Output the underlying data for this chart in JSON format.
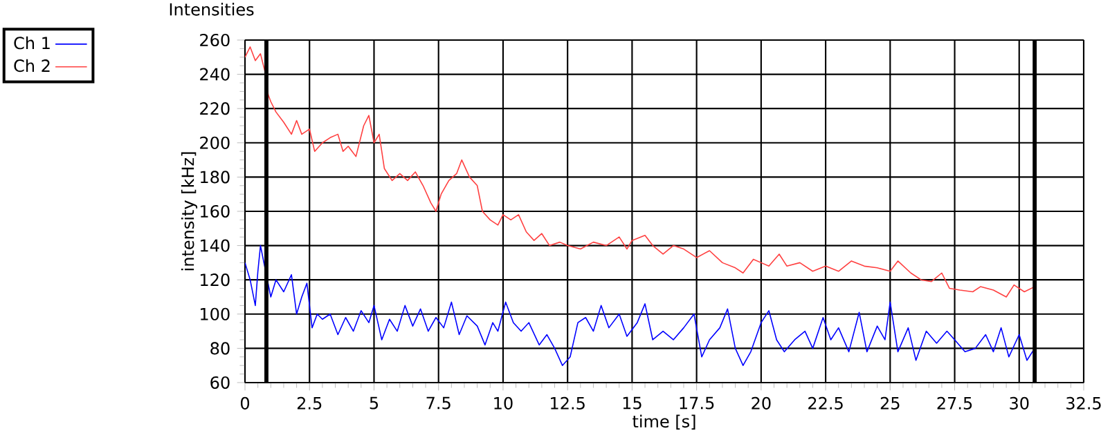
{
  "chart_data": {
    "type": "line",
    "title": "Intensities",
    "xlabel": "time [s]",
    "ylabel": "intensity [kHz]",
    "xlim": [
      0,
      32.5
    ],
    "ylim": [
      60,
      260
    ],
    "xticks": [
      0,
      2.5,
      5,
      7.5,
      10,
      12.5,
      15,
      17.5,
      20,
      22.5,
      25,
      27.5,
      30,
      32.5
    ],
    "yticks": [
      60,
      80,
      100,
      120,
      140,
      160,
      180,
      200,
      220,
      240,
      260
    ],
    "grid": true,
    "legend": "top left",
    "marker": "none",
    "line_style": "solid",
    "ref_lines": [
      {
        "axis": "x",
        "value": 0.83,
        "color": "#000000"
      },
      {
        "axis": "x",
        "value": 30.6,
        "color": "#000000"
      }
    ],
    "series": [
      {
        "name": "Ch 1",
        "color": "#0000ff",
        "x": [
          0,
          0.2,
          0.4,
          0.5,
          0.6,
          0.8,
          1.0,
          1.2,
          1.5,
          1.8,
          2.0,
          2.2,
          2.4,
          2.6,
          2.8,
          3.0,
          3.3,
          3.6,
          3.9,
          4.2,
          4.5,
          4.8,
          5.0,
          5.3,
          5.6,
          5.9,
          6.2,
          6.5,
          6.8,
          7.1,
          7.4,
          7.7,
          8.0,
          8.3,
          8.6,
          9.0,
          9.3,
          9.6,
          9.8,
          10.1,
          10.4,
          10.7,
          11.0,
          11.4,
          11.7,
          12.0,
          12.3,
          12.6,
          12.9,
          13.2,
          13.5,
          13.8,
          14.1,
          14.5,
          14.8,
          15.2,
          15.5,
          15.8,
          16.2,
          16.6,
          17.0,
          17.4,
          17.7,
          18.0,
          18.4,
          18.7,
          19.0,
          19.3,
          19.6,
          20.0,
          20.3,
          20.6,
          20.9,
          21.3,
          21.7,
          22.0,
          22.4,
          22.7,
          23.0,
          23.4,
          23.8,
          24.1,
          24.5,
          24.8,
          25.0,
          25.3,
          25.7,
          26.0,
          26.4,
          26.8,
          27.2,
          27.5,
          27.9,
          28.3,
          28.7,
          29.0,
          29.3,
          29.6,
          30.0,
          30.3,
          30.6
        ],
        "values": [
          130,
          120,
          105,
          125,
          140,
          null,
          110,
          120,
          113,
          123,
          100,
          110,
          118,
          92,
          100,
          97,
          100,
          88,
          98,
          90,
          102,
          95,
          105,
          85,
          97,
          90,
          105,
          93,
          103,
          90,
          98,
          92,
          107,
          88,
          99,
          93,
          82,
          95,
          90,
          107,
          95,
          90,
          95,
          82,
          88,
          80,
          70,
          75,
          95,
          98,
          90,
          105,
          92,
          100,
          87,
          95,
          106,
          85,
          90,
          85,
          92,
          100,
          75,
          85,
          92,
          103,
          80,
          70,
          78,
          95,
          102,
          85,
          78,
          85,
          90,
          80,
          98,
          85,
          92,
          78,
          101,
          78,
          93,
          85,
          107,
          78,
          92,
          73,
          90,
          83,
          90,
          85,
          78,
          80,
          88,
          78,
          92,
          75,
          88,
          73,
          80
        ]
      },
      {
        "name": "Ch 2",
        "color": "#ff4040",
        "x": [
          0,
          0.2,
          0.4,
          0.6,
          0.8,
          0.9,
          1.0,
          1.2,
          1.5,
          1.8,
          2.0,
          2.2,
          2.5,
          2.7,
          3.0,
          3.3,
          3.6,
          3.8,
          4.0,
          4.3,
          4.6,
          4.8,
          5.0,
          5.2,
          5.4,
          5.7,
          6.0,
          6.3,
          6.6,
          6.9,
          7.2,
          7.4,
          7.6,
          7.9,
          8.2,
          8.4,
          8.7,
          9.0,
          9.2,
          9.5,
          9.8,
          10.0,
          10.3,
          10.6,
          10.9,
          11.2,
          11.5,
          11.8,
          12.2,
          12.5,
          13.0,
          13.5,
          14.0,
          14.5,
          14.8,
          15.0,
          15.5,
          15.8,
          16.2,
          16.6,
          17.0,
          17.5,
          18.0,
          18.5,
          19.0,
          19.3,
          19.7,
          20.0,
          20.3,
          20.7,
          21.0,
          21.5,
          22.0,
          22.5,
          23.0,
          23.5,
          24.0,
          24.5,
          25.0,
          25.3,
          25.8,
          26.2,
          26.6,
          27.0,
          27.3,
          27.7,
          28.2,
          28.5,
          29.0,
          29.5,
          29.8,
          30.2,
          30.6
        ],
        "values": [
          250,
          256,
          248,
          252,
          240,
          228,
          224,
          218,
          212,
          205,
          213,
          205,
          208,
          195,
          200,
          203,
          205,
          195,
          198,
          192,
          210,
          216,
          200,
          205,
          185,
          178,
          182,
          178,
          183,
          175,
          165,
          160,
          170,
          178,
          182,
          190,
          180,
          175,
          160,
          155,
          152,
          158,
          155,
          158,
          148,
          143,
          147,
          140,
          142,
          140,
          138,
          142,
          140,
          145,
          138,
          143,
          146,
          140,
          135,
          140,
          138,
          133,
          137,
          130,
          127,
          124,
          132,
          130,
          128,
          135,
          128,
          130,
          125,
          128,
          125,
          131,
          128,
          127,
          125,
          131,
          124,
          120,
          119,
          124,
          115,
          114,
          113,
          116,
          114,
          110,
          117,
          113,
          116
        ]
      }
    ]
  }
}
